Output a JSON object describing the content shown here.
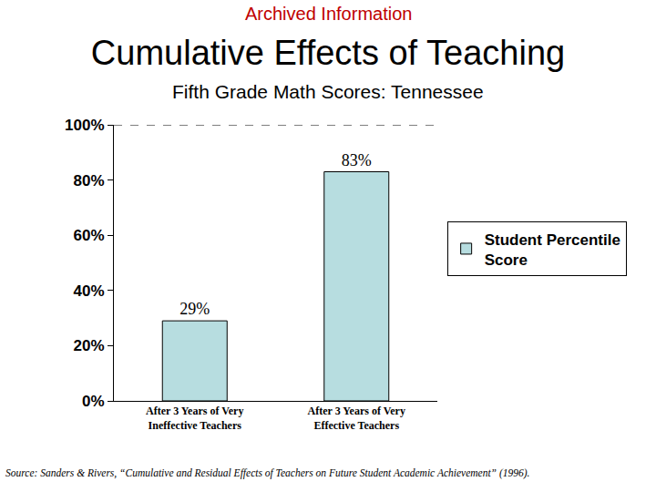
{
  "chart_data": {
    "type": "bar",
    "header": "Archived Information",
    "title": "Cumulative Effects of Teaching",
    "subtitle": "Fifth Grade Math Scores: Tennessee",
    "categories": [
      "After 3 Years of Very\nIneffective Teachers",
      "After 3 Years of Very\nEffective Teachers"
    ],
    "series": [
      {
        "name": "Student Percentile\nScore",
        "color": "#b7dde0",
        "values": [
          29,
          83
        ],
        "value_labels": [
          "29%",
          "83%"
        ]
      }
    ],
    "ylim": [
      0,
      100
    ],
    "yticks": [
      {
        "value": 0,
        "label": "0%"
      },
      {
        "value": 20,
        "label": "20%"
      },
      {
        "value": 40,
        "label": "40%"
      },
      {
        "value": 60,
        "label": "60%"
      },
      {
        "value": 80,
        "label": "80%"
      },
      {
        "value": 100,
        "label": "100%"
      }
    ],
    "grid": false,
    "legend": "right",
    "data_labels": true,
    "source": "Source: Sanders & Rivers, “Cumulative and Residual Effects of Teachers on Future Student Academic Achievement” (1996)."
  }
}
